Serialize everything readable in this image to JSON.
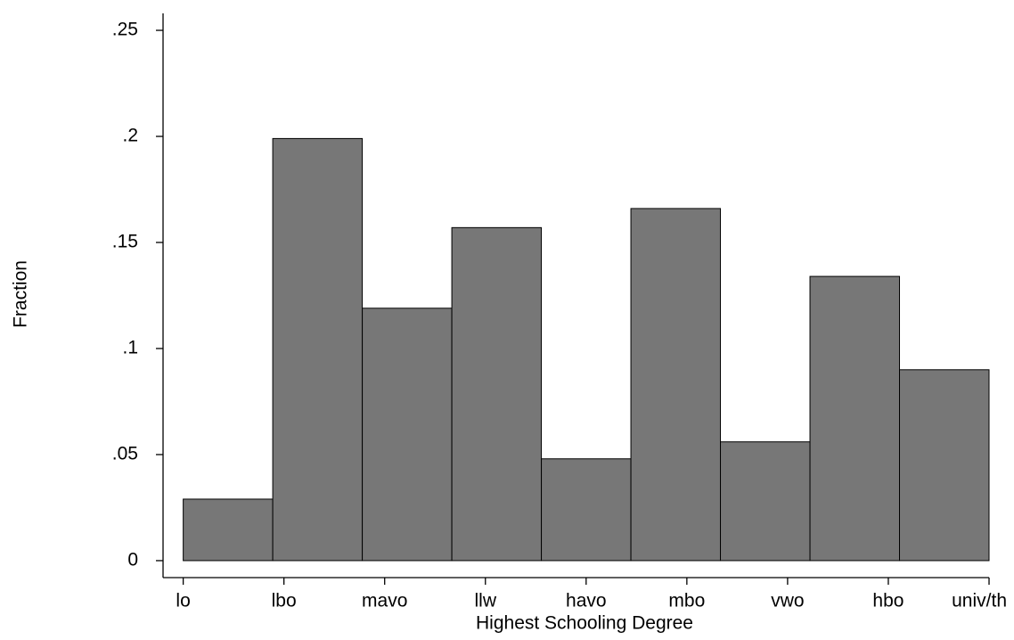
{
  "chart_data": {
    "type": "histogram",
    "x_label": "Highest Schooling Degree",
    "y_label": "Fraction",
    "bins": [
      1,
      1.8889,
      2.7778,
      3.6667,
      4.5556,
      5.4444,
      6.3333,
      7.2222,
      8.1111,
      9
    ],
    "values": [
      0.029,
      0.199,
      0.119,
      0.157,
      0.048,
      0.166,
      0.056,
      0.134,
      0.09
    ],
    "color": "#777777",
    "xlim": [
      0.8,
      9
    ],
    "xticks": [
      {
        "value": 1,
        "label": "lo"
      },
      {
        "value": 2,
        "label": "lbo"
      },
      {
        "value": 3,
        "label": "mavo"
      },
      {
        "value": 4,
        "label": "llw"
      },
      {
        "value": 5,
        "label": "havo"
      },
      {
        "value": 6,
        "label": "mbo"
      },
      {
        "value": 7,
        "label": "vwo"
      },
      {
        "value": 8,
        "label": "hbo"
      },
      {
        "value": 9,
        "label": "univ/th"
      }
    ],
    "ylim": [
      -0.008,
      0.258
    ],
    "yticks": [
      0,
      {
        "value": 0.05,
        "label": ".05"
      },
      {
        "value": 0.1,
        "label": ".1"
      },
      {
        "value": 0.15,
        "label": ".15"
      },
      {
        "value": 0.2,
        "label": ".2"
      },
      {
        "value": 0.25,
        "label": ".25"
      }
    ]
  }
}
